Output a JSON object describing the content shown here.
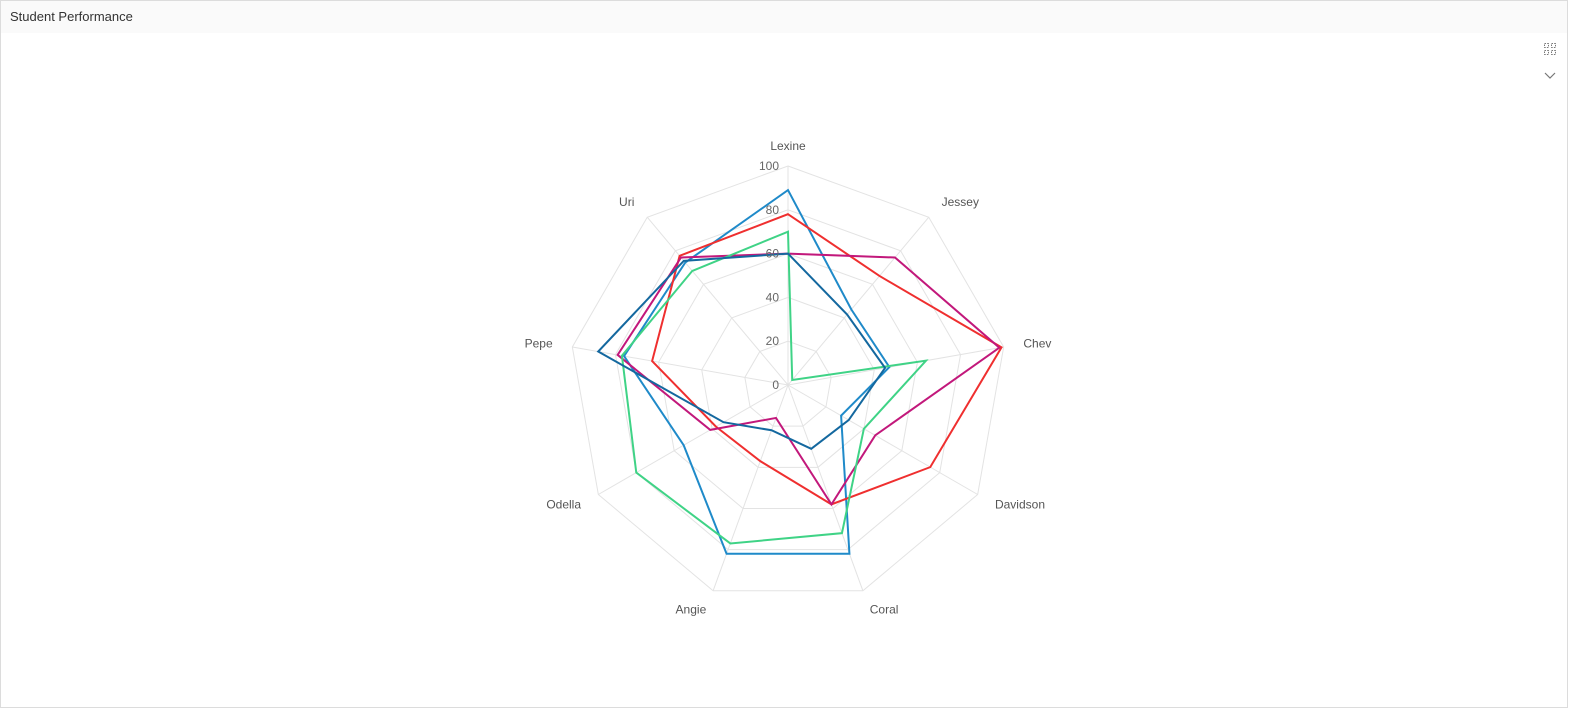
{
  "header": {
    "title": "Student Performance"
  },
  "toolbar": {
    "fullscreen_icon": "fullscreen-icon",
    "menu_icon": "chevron-down-icon"
  },
  "chart_data": {
    "type": "radar",
    "title": "",
    "axes": [
      "Lexine",
      "Jessey",
      "Chev",
      "Davidson",
      "Coral",
      "Angie",
      "Odella",
      "Pepe",
      "Uri"
    ],
    "rlim": [
      0,
      100
    ],
    "ticks": [
      "0",
      "20",
      "40",
      "60",
      "80",
      "100"
    ],
    "grid": true,
    "legend": "none",
    "series": [
      {
        "color": "#1f8ac9",
        "values": [
          89,
          45,
          47,
          28,
          82,
          82,
          55,
          76,
          73
        ]
      },
      {
        "color": "#ef2f2f",
        "values": [
          78,
          65,
          99,
          75,
          58,
          37,
          38,
          63,
          77
        ]
      },
      {
        "color": "#c2187b",
        "values": [
          60,
          76,
          98,
          46,
          58,
          16,
          41,
          79,
          76
        ]
      },
      {
        "color": "#3fd386",
        "values": [
          70,
          3,
          64,
          40,
          72,
          77,
          80,
          77,
          68
        ]
      },
      {
        "color": "#14689f",
        "values": [
          60,
          42,
          45,
          32,
          31,
          22,
          34,
          88,
          74
        ]
      }
    ]
  }
}
